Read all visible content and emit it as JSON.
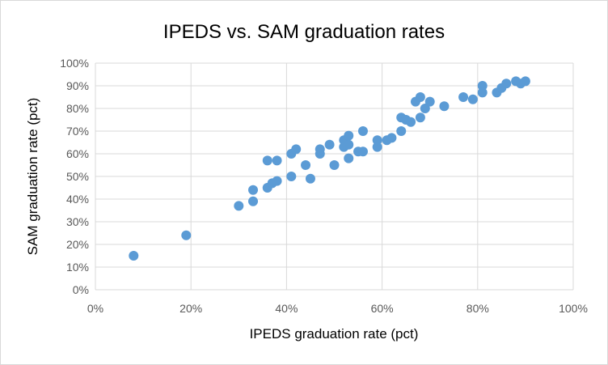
{
  "chart_data": {
    "type": "scatter",
    "title": "IPEDS vs. SAM graduation rates",
    "xlabel": "IPEDS graduation rate (pct)",
    "ylabel": "SAM graduation rate (pct)",
    "xlim": [
      0,
      100
    ],
    "ylim": [
      0,
      100
    ],
    "x_ticks": [
      "0%",
      "20%",
      "40%",
      "60%",
      "80%",
      "100%"
    ],
    "y_ticks": [
      "0%",
      "10%",
      "20%",
      "30%",
      "40%",
      "50%",
      "60%",
      "70%",
      "80%",
      "90%",
      "100%"
    ],
    "grid": true,
    "legend": "none",
    "marker_color": "#5b9bd5",
    "points": [
      [
        8,
        15
      ],
      [
        19,
        24
      ],
      [
        30,
        37
      ],
      [
        33,
        39
      ],
      [
        33,
        44
      ],
      [
        36,
        45
      ],
      [
        36,
        57
      ],
      [
        37,
        47
      ],
      [
        38,
        48
      ],
      [
        38,
        57
      ],
      [
        41,
        50
      ],
      [
        41,
        60
      ],
      [
        42,
        62
      ],
      [
        44,
        55
      ],
      [
        45,
        49
      ],
      [
        47,
        60
      ],
      [
        47,
        62
      ],
      [
        49,
        64
      ],
      [
        50,
        55
      ],
      [
        52,
        63
      ],
      [
        52,
        66
      ],
      [
        53,
        58
      ],
      [
        53,
        64
      ],
      [
        53,
        68
      ],
      [
        55,
        61
      ],
      [
        56,
        61
      ],
      [
        56,
        70
      ],
      [
        59,
        63
      ],
      [
        59,
        66
      ],
      [
        61,
        66
      ],
      [
        62,
        67
      ],
      [
        64,
        70
      ],
      [
        64,
        76
      ],
      [
        65,
        75
      ],
      [
        66,
        74
      ],
      [
        67,
        83
      ],
      [
        68,
        76
      ],
      [
        68,
        85
      ],
      [
        69,
        80
      ],
      [
        70,
        83
      ],
      [
        73,
        81
      ],
      [
        77,
        85
      ],
      [
        79,
        84
      ],
      [
        81,
        87
      ],
      [
        81,
        90
      ],
      [
        84,
        87
      ],
      [
        85,
        89
      ],
      [
        86,
        91
      ],
      [
        88,
        92
      ],
      [
        89,
        91
      ],
      [
        90,
        92
      ]
    ]
  }
}
